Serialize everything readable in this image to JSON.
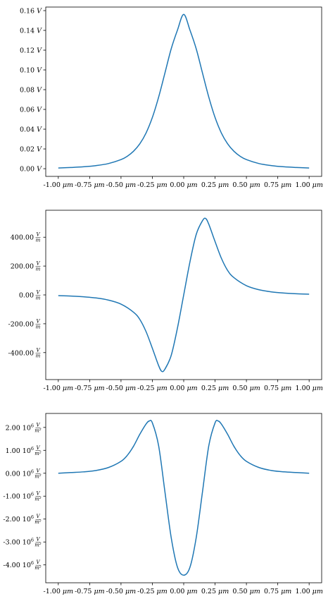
{
  "chart_data": [
    {
      "type": "line",
      "title": "",
      "xlabel": "",
      "ylabel": "",
      "color": "#1f77b4",
      "x_ticks": [
        {
          "value": -1.0,
          "label": "-1.00",
          "unit": "μm"
        },
        {
          "value": -0.75,
          "label": "-0.75",
          "unit": "μm"
        },
        {
          "value": -0.5,
          "label": "-0.50",
          "unit": "μm"
        },
        {
          "value": -0.25,
          "label": "-0.25",
          "unit": "μm"
        },
        {
          "value": 0.0,
          "label": "0.00",
          "unit": "μm"
        },
        {
          "value": 0.25,
          "label": "0.25",
          "unit": "μm"
        },
        {
          "value": 0.5,
          "label": "0.50",
          "unit": "μm"
        },
        {
          "value": 0.75,
          "label": "0.75",
          "unit": "μm"
        },
        {
          "value": 1.0,
          "label": "1.00",
          "unit": "μm"
        }
      ],
      "y_ticks": [
        {
          "value": 0.0,
          "label": "0.00",
          "unit": "V"
        },
        {
          "value": 0.02,
          "label": "0.02",
          "unit": "V"
        },
        {
          "value": 0.04,
          "label": "0.04",
          "unit": "V"
        },
        {
          "value": 0.06,
          "label": "0.06",
          "unit": "V"
        },
        {
          "value": 0.08,
          "label": "0.08",
          "unit": "V"
        },
        {
          "value": 0.1,
          "label": "0.10",
          "unit": "V"
        },
        {
          "value": 0.12,
          "label": "0.12",
          "unit": "V"
        },
        {
          "value": 0.14,
          "label": "0.14",
          "unit": "V"
        },
        {
          "value": 0.16,
          "label": "0.16",
          "unit": "V"
        }
      ],
      "xlim": [
        -1.1,
        1.1
      ],
      "ylim": [
        -0.0078,
        0.1636
      ],
      "series": [
        {
          "x": [
            -1.0,
            -0.9,
            -0.8,
            -0.7,
            -0.6,
            -0.5,
            -0.45,
            -0.4,
            -0.35,
            -0.3,
            -0.25,
            -0.2,
            -0.15,
            -0.1,
            -0.05,
            0.0,
            0.05,
            0.1,
            0.15,
            0.2,
            0.25,
            0.3,
            0.35,
            0.4,
            0.45,
            0.5,
            0.6,
            0.7,
            0.8,
            0.9,
            1.0
          ],
          "y": [
            0.0007,
            0.0012,
            0.0019,
            0.0031,
            0.0052,
            0.0092,
            0.0126,
            0.0177,
            0.0252,
            0.0362,
            0.0518,
            0.0724,
            0.0967,
            0.1212,
            0.1402,
            0.1562,
            0.1402,
            0.1212,
            0.0967,
            0.0724,
            0.0518,
            0.0362,
            0.0252,
            0.0177,
            0.0126,
            0.0092,
            0.0052,
            0.0031,
            0.0019,
            0.0012,
            0.0007
          ]
        }
      ]
    },
    {
      "type": "line",
      "title": "",
      "xlabel": "",
      "ylabel": "",
      "color": "#1f77b4",
      "x_ticks": [
        {
          "value": -1.0,
          "label": "-1.00",
          "unit": "μm"
        },
        {
          "value": -0.75,
          "label": "-0.75",
          "unit": "μm"
        },
        {
          "value": -0.5,
          "label": "-0.50",
          "unit": "μm"
        },
        {
          "value": -0.25,
          "label": "-0.25",
          "unit": "μm"
        },
        {
          "value": 0.0,
          "label": "0.00",
          "unit": "μm"
        },
        {
          "value": 0.25,
          "label": "0.25",
          "unit": "μm"
        },
        {
          "value": 0.5,
          "label": "0.50",
          "unit": "μm"
        },
        {
          "value": 0.75,
          "label": "0.75",
          "unit": "μm"
        },
        {
          "value": 1.0,
          "label": "1.00",
          "unit": "μm"
        }
      ],
      "y_ticks": [
        {
          "value": -400.0,
          "label": "-400.00",
          "unit_num": "V",
          "unit_den": "m"
        },
        {
          "value": -200.0,
          "label": "-200.00",
          "unit_num": "V",
          "unit_den": "m"
        },
        {
          "value": 0.0,
          "label": "0.00",
          "unit_num": "V",
          "unit_den": "m"
        },
        {
          "value": 200.0,
          "label": "200.00",
          "unit_num": "V",
          "unit_den": "m"
        },
        {
          "value": 400.0,
          "label": "400.00",
          "unit_num": "V",
          "unit_den": "m"
        }
      ],
      "xlim": [
        -1.1,
        1.1
      ],
      "ylim": [
        -587,
        587
      ],
      "series": [
        {
          "x": [
            -1.0,
            -0.9,
            -0.8,
            -0.7,
            -0.6,
            -0.5,
            -0.4,
            -0.35,
            -0.3,
            -0.25,
            -0.2,
            -0.175,
            -0.15,
            -0.1,
            -0.05,
            0.0,
            0.05,
            0.1,
            0.15,
            0.175,
            0.2,
            0.25,
            0.3,
            0.35,
            0.4,
            0.5,
            0.6,
            0.7,
            0.8,
            0.9,
            1.0
          ],
          "y": [
            -5,
            -8,
            -13,
            -21,
            -36,
            -64,
            -120,
            -170,
            -255,
            -370,
            -490,
            -530,
            -515,
            -420,
            -230,
            0,
            230,
            420,
            515,
            530,
            490,
            370,
            255,
            170,
            120,
            64,
            36,
            21,
            13,
            8,
            5
          ]
        }
      ]
    },
    {
      "type": "line",
      "title": "",
      "xlabel": "",
      "ylabel": "",
      "color": "#1f77b4",
      "x_ticks": [
        {
          "value": -1.0,
          "label": "-1.00",
          "unit": "μm"
        },
        {
          "value": -0.75,
          "label": "-0.75",
          "unit": "μm"
        },
        {
          "value": -0.5,
          "label": "-0.50",
          "unit": "μm"
        },
        {
          "value": -0.25,
          "label": "-0.25",
          "unit": "μm"
        },
        {
          "value": 0.0,
          "label": "0.00",
          "unit": "μm"
        },
        {
          "value": 0.25,
          "label": "0.25",
          "unit": "μm"
        },
        {
          "value": 0.5,
          "label": "0.50",
          "unit": "μm"
        },
        {
          "value": 0.75,
          "label": "0.75",
          "unit": "μm"
        },
        {
          "value": 1.0,
          "label": "1.00",
          "unit": "μm"
        }
      ],
      "y_ticks": [
        {
          "value": -4.0,
          "label": "-4.00",
          "exp": "10",
          "sup": "6",
          "unit_num": "V",
          "unit_den": "m²"
        },
        {
          "value": -3.0,
          "label": "-3.00",
          "exp": "10",
          "sup": "6",
          "unit_num": "V",
          "unit_den": "m²"
        },
        {
          "value": -2.0,
          "label": "-2.00",
          "exp": "10",
          "sup": "6",
          "unit_num": "V",
          "unit_den": "m²"
        },
        {
          "value": -1.0,
          "label": "-1.00",
          "exp": "10",
          "sup": "6",
          "unit_num": "V",
          "unit_den": "m²"
        },
        {
          "value": 0.0,
          "label": "0.00",
          "exp": "10",
          "sup": "6",
          "unit_num": "V",
          "unit_den": "m²"
        },
        {
          "value": 1.0,
          "label": "1.00",
          "exp": "10",
          "sup": "6",
          "unit_num": "V",
          "unit_den": "m²"
        },
        {
          "value": 2.0,
          "label": "2.00",
          "exp": "10",
          "sup": "6",
          "unit_num": "V",
          "unit_den": "m²"
        }
      ],
      "xlim": [
        -1.1,
        1.1
      ],
      "ylim": [
        -4.78,
        2.61
      ],
      "series": [
        {
          "x": [
            -1.0,
            -0.9,
            -0.8,
            -0.7,
            -0.6,
            -0.5,
            -0.45,
            -0.4,
            -0.35,
            -0.3,
            -0.275,
            -0.25,
            -0.2,
            -0.15,
            -0.1,
            -0.05,
            0.0,
            0.05,
            0.1,
            0.15,
            0.2,
            0.25,
            0.275,
            0.3,
            0.35,
            0.4,
            0.45,
            0.5,
            0.6,
            0.7,
            0.8,
            0.9,
            1.0
          ],
          "y": [
            0.0,
            0.03,
            0.06,
            0.12,
            0.25,
            0.52,
            0.78,
            1.18,
            1.7,
            2.15,
            2.28,
            2.2,
            1.2,
            -0.8,
            -2.8,
            -4.1,
            -4.45,
            -4.1,
            -2.8,
            -0.8,
            1.2,
            2.2,
            2.28,
            2.15,
            1.7,
            1.18,
            0.78,
            0.52,
            0.25,
            0.12,
            0.06,
            0.03,
            0.0
          ]
        }
      ]
    }
  ]
}
